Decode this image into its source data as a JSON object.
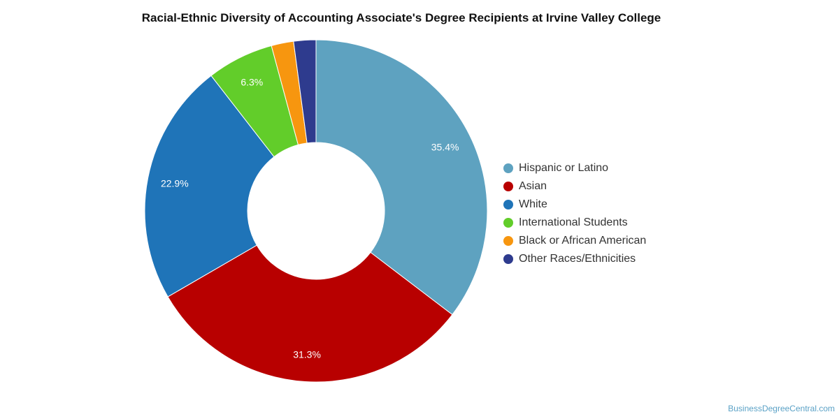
{
  "chart_data": {
    "type": "pie",
    "title": "Racial-Ethnic Diversity of Accounting Associate's Degree Recipients at Irvine Valley College",
    "donut": true,
    "legend_position": "right",
    "series": [
      {
        "name": "Hispanic or Latino",
        "value": 35.4,
        "label": "35.4%",
        "color": "#5ea2c0"
      },
      {
        "name": "Asian",
        "value": 31.3,
        "label": "31.3%",
        "color": "#b80000"
      },
      {
        "name": "White",
        "value": 22.9,
        "label": "22.9%",
        "color": "#1f74b8"
      },
      {
        "name": "International Students",
        "value": 6.3,
        "label": "6.3%",
        "color": "#62cd2a"
      },
      {
        "name": "Black or African American",
        "value": 2.1,
        "label": "",
        "color": "#f7960f"
      },
      {
        "name": "Other Races/Ethnicities",
        "value": 2.1,
        "label": "",
        "color": "#2e3b8e"
      }
    ]
  },
  "watermark": "BusinessDegreeCentral.com"
}
